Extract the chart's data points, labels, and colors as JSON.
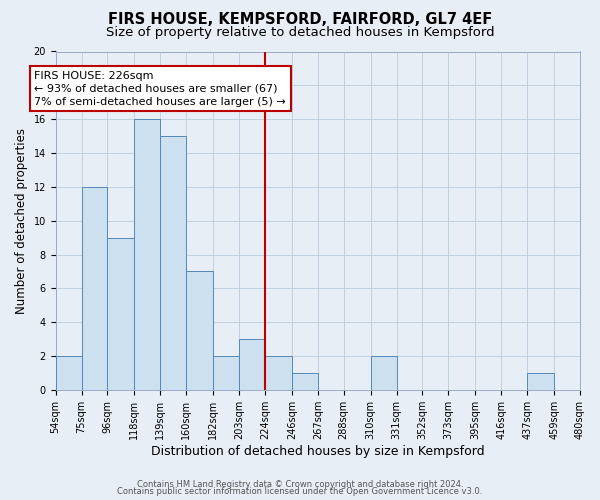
{
  "title": "FIRS HOUSE, KEMPSFORD, FAIRFORD, GL7 4EF",
  "subtitle": "Size of property relative to detached houses in Kempsford",
  "xlabel": "Distribution of detached houses by size in Kempsford",
  "ylabel": "Number of detached properties",
  "bin_edges": [
    54,
    75,
    96,
    118,
    139,
    160,
    182,
    203,
    224,
    246,
    267,
    288,
    310,
    331,
    352,
    373,
    395,
    416,
    437,
    459,
    480
  ],
  "bar_heights": [
    2,
    12,
    9,
    16,
    15,
    7,
    2,
    3,
    2,
    1,
    0,
    0,
    2,
    0,
    0,
    0,
    0,
    0,
    1,
    0
  ],
  "bar_color": "#cce0f0",
  "bar_edgecolor": "#5588bb",
  "grid_color": "#bbccdd",
  "bg_color": "#e8eef5",
  "vline_x": 224,
  "vline_color": "#bb0000",
  "annotation_title": "FIRS HOUSE: 226sqm",
  "annotation_line1": "← 93% of detached houses are smaller (67)",
  "annotation_line2": "7% of semi-detached houses are larger (5) →",
  "annotation_box_edgecolor": "#bb0000",
  "annotation_box_facecolor": "#ffffff",
  "ylim": [
    0,
    20
  ],
  "yticks": [
    0,
    2,
    4,
    6,
    8,
    10,
    12,
    14,
    16,
    18,
    20
  ],
  "tick_labels": [
    "54sqm",
    "75sqm",
    "96sqm",
    "118sqm",
    "139sqm",
    "160sqm",
    "182sqm",
    "203sqm",
    "224sqm",
    "246sqm",
    "267sqm",
    "288sqm",
    "310sqm",
    "331sqm",
    "352sqm",
    "373sqm",
    "395sqm",
    "416sqm",
    "437sqm",
    "459sqm",
    "480sqm"
  ],
  "footer1": "Contains HM Land Registry data © Crown copyright and database right 2024.",
  "footer2": "Contains public sector information licensed under the Open Government Licence v3.0.",
  "title_fontsize": 10.5,
  "subtitle_fontsize": 9.5,
  "xlabel_fontsize": 9,
  "ylabel_fontsize": 8.5,
  "tick_fontsize": 7,
  "footer_fontsize": 6,
  "ann_fontsize": 8
}
